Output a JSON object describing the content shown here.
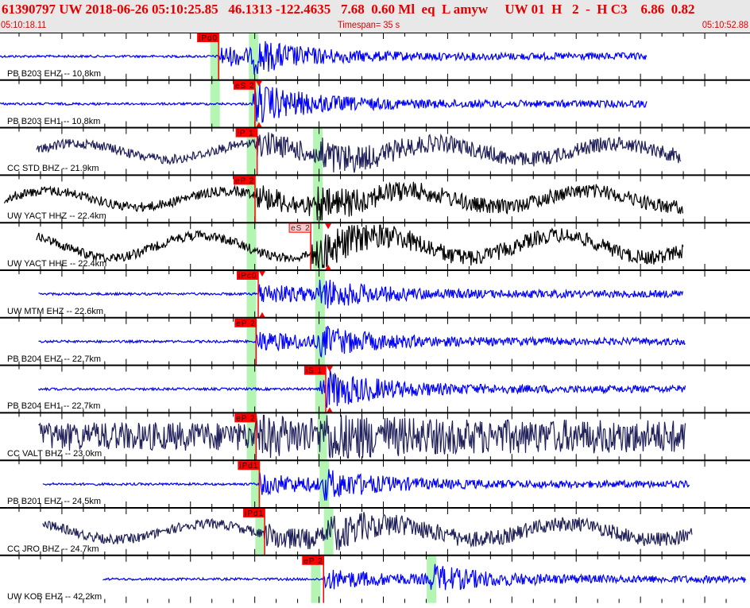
{
  "header": {
    "title": "61390797 UW 2018-06-26 05:10:25.85   46.1313 -122.4635   7.68  0.60 Ml  eq  L amyw     UW 01  H   2  -  H C3    6.86  0.82",
    "start_time": "05:10:18.11",
    "timespan": "Timespan=  35 s",
    "end_time": "05:10:52.88"
  },
  "colors": {
    "header_text": "#e00000",
    "pick": "#ff0000",
    "pick_soft": "#ffc8c8",
    "phase_window": "#b4f5b4",
    "blue": "#0000ff",
    "navy": "#20205a",
    "black": "#000000"
  },
  "timespan_s": 35,
  "channels": [
    {
      "label": "PB B203 EHZ -- 10.8km",
      "color": "blue",
      "pick": {
        "name": "iPd0",
        "t": 10.2,
        "style": "solid"
      },
      "windows": [
        10.0,
        11.8
      ],
      "span": [
        0,
        30.2
      ]
    },
    {
      "label": "PB B203 EH1 -- 10.8km",
      "color": "blue",
      "pick": {
        "name": "eS 2",
        "t": 11.9,
        "style": "solid",
        "triangle": true
      },
      "windows": [
        10.0,
        11.8
      ],
      "span": [
        0,
        30.2
      ]
    },
    {
      "label": "CC STD BHZ -- 21.9km",
      "color": "navy",
      "pick": {
        "name": "iP 1",
        "t": 12.0,
        "style": "solid"
      },
      "windows": [
        11.7,
        14.8
      ],
      "span": [
        1.7,
        31.8
      ]
    },
    {
      "label": "UW YACT HHZ -- 22.4km",
      "color": "black",
      "pick": {
        "name": "eP 2",
        "t": 11.9,
        "style": "solid"
      },
      "windows": [
        11.7,
        14.8
      ],
      "span": [
        0.2,
        31.9
      ]
    },
    {
      "label": "UW YACT HHE -- 22.4km",
      "color": "black",
      "pick": {
        "name": "eS 2",
        "t": 14.5,
        "style": "soft",
        "triangle": true
      },
      "windows": [
        11.7,
        14.8
      ],
      "span": [
        1.7,
        31.9
      ]
    },
    {
      "label": "UW MTM EHZ -- 22.6km",
      "color": "blue",
      "pick": {
        "name": "iPc0",
        "t": 12.05,
        "style": "solid",
        "triangle": true
      },
      "windows": [
        11.7,
        14.9
      ],
      "span": [
        1.8,
        31.9
      ]
    },
    {
      "label": "PB B204 EHZ -- 22.7km",
      "color": "blue",
      "pick": {
        "name": "eP 2",
        "t": 11.95,
        "style": "solid"
      },
      "windows": [
        11.7,
        14.9
      ],
      "span": [
        1.8,
        32.0
      ]
    },
    {
      "label": "PB B204 EH1 -- 22.7km",
      "color": "blue",
      "pick": {
        "name": "iS 1",
        "t": 15.2,
        "style": "solid",
        "triangle": true
      },
      "windows": [
        11.7,
        14.9
      ],
      "span": [
        1.8,
        32.0
      ]
    },
    {
      "label": "CC VALT BHZ -- 23.0km",
      "color": "navy",
      "pick": {
        "name": "eP 2",
        "t": 11.95,
        "style": "solid"
      },
      "windows": [
        11.7,
        15.0
      ],
      "span": [
        1.8,
        32.0
      ]
    },
    {
      "label": "PB B201 EHZ -- 24.5km",
      "color": "blue",
      "pick": {
        "name": "iPd1",
        "t": 12.1,
        "style": "solid"
      },
      "windows": [
        11.9,
        15.1
      ],
      "span": [
        2.0,
        32.2
      ]
    },
    {
      "label": "CC JRO BHZ -- 24.7km",
      "color": "navy",
      "pick": {
        "name": "iPd1",
        "t": 12.35,
        "style": "solid"
      },
      "windows": [
        12.1,
        15.3
      ],
      "span": [
        2.0,
        32.3
      ]
    },
    {
      "label": "UW KOB EHZ -- 42.2km",
      "color": "blue",
      "pick": {
        "name": "eP 2",
        "t": 15.1,
        "style": "solid"
      },
      "windows": [
        14.7,
        20.1
      ],
      "span": [
        4.8,
        34.8
      ]
    }
  ]
}
